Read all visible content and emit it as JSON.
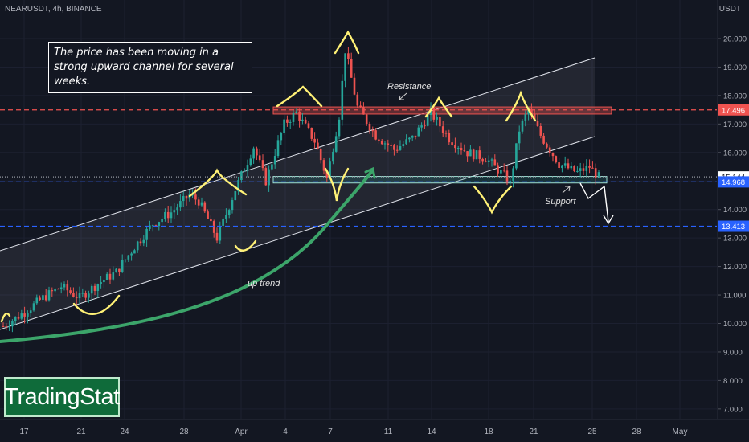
{
  "header": {
    "symbol": "NEARUSDT, 4h, BINANCE",
    "currency": "USDT"
  },
  "annotations": {
    "note": "The price has been moving in a strong upward channel for several weeks.",
    "resistance": "Resistance",
    "support": "Support",
    "uptrend": "up trend"
  },
  "logo": {
    "text": "TradingStat"
  },
  "colors": {
    "background": "#131722",
    "up": "#26a69a",
    "down": "#ef5350",
    "resistance_line": "#ef5350",
    "support_line": "#2962ff",
    "current_price_tag": "#ffffff",
    "channel": "#e0e3eb",
    "uptrend_arrow": "#3ca56a",
    "highlight_curves": "#fff176"
  },
  "chart_data": {
    "type": "candlestick",
    "timeframe": "4h",
    "y_axis": {
      "ticks": [
        "20.000",
        "19.000",
        "18.000",
        "17.000",
        "16.000",
        "15.000",
        "14.000",
        "13.000",
        "12.000",
        "11.000",
        "10.000",
        "9.000",
        "8.000",
        "7.000"
      ],
      "range": [
        6.5,
        20.8
      ]
    },
    "x_axis": {
      "ticks": [
        "17",
        "21",
        "24",
        "28",
        "Apr",
        "4",
        "7",
        "11",
        "14",
        "18",
        "21",
        "25",
        "28",
        "May"
      ]
    },
    "price_levels": [
      {
        "label": "17.496",
        "value": 17.496,
        "style": "resistance"
      },
      {
        "label": "15.144",
        "value": 15.144,
        "style": "current"
      },
      {
        "label": "14.968",
        "value": 14.968,
        "style": "support"
      },
      {
        "label": "13.413",
        "value": 13.413,
        "style": "target"
      }
    ],
    "close_path": [
      [
        0,
        9.9
      ],
      [
        7,
        10.4
      ],
      [
        13,
        10.9
      ],
      [
        19,
        11.3
      ],
      [
        25,
        10.9
      ],
      [
        31,
        11.4
      ],
      [
        37,
        11.8
      ],
      [
        43,
        12.7
      ],
      [
        49,
        13.5
      ],
      [
        55,
        13.9
      ],
      [
        61,
        14.5
      ],
      [
        64,
        14.3
      ],
      [
        70,
        13.0
      ],
      [
        76,
        14.7
      ],
      [
        82,
        16.2
      ],
      [
        86,
        15.0
      ],
      [
        92,
        17.0
      ],
      [
        96,
        17.4
      ],
      [
        102,
        16.4
      ],
      [
        106,
        15.1
      ],
      [
        110,
        17.3
      ],
      [
        112,
        19.6
      ],
      [
        116,
        17.6
      ],
      [
        122,
        16.6
      ],
      [
        128,
        16.1
      ],
      [
        134,
        16.5
      ],
      [
        140,
        17.4
      ],
      [
        146,
        16.5
      ],
      [
        152,
        16.0
      ],
      [
        158,
        15.8
      ],
      [
        164,
        15.2
      ],
      [
        166,
        14.9
      ],
      [
        169,
        16.8
      ],
      [
        172,
        17.5
      ],
      [
        176,
        16.6
      ],
      [
        182,
        15.6
      ],
      [
        188,
        15.3
      ],
      [
        192,
        15.5
      ],
      [
        195,
        15.144
      ]
    ]
  }
}
